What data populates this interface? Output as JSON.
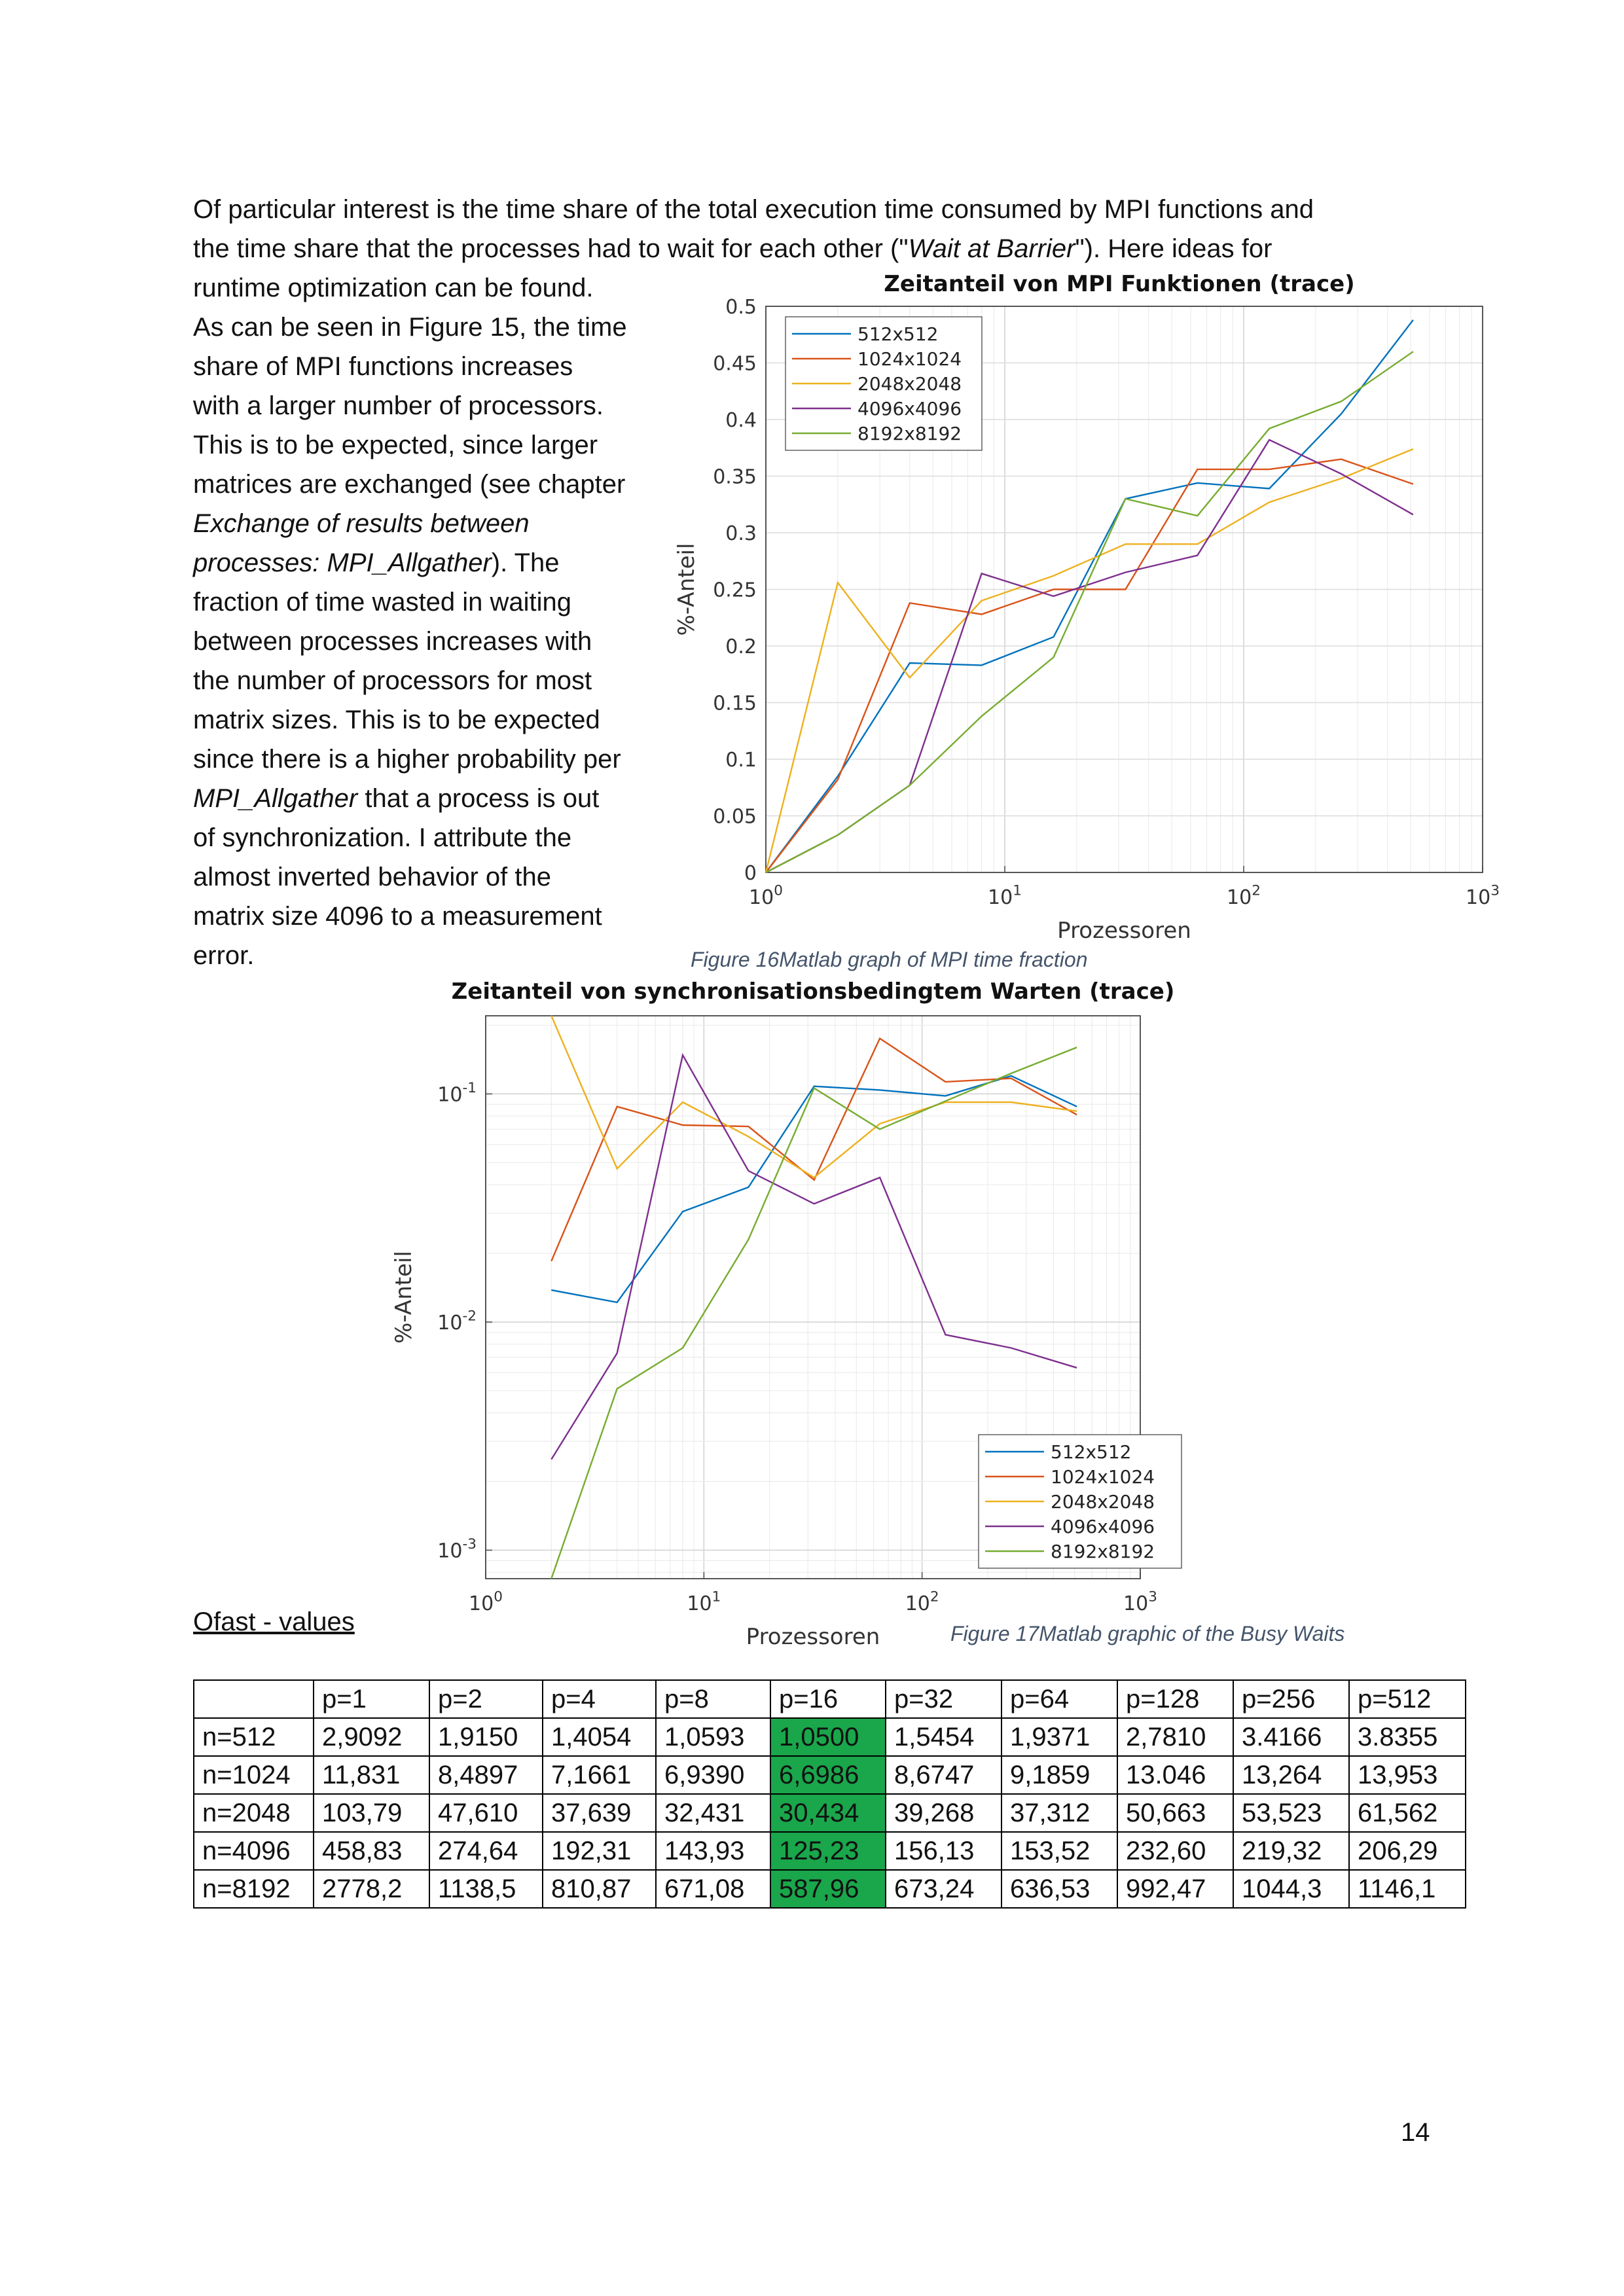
{
  "intro": {
    "line1": "Of particular interest is the time share of the total execution time consumed by MPI functions and",
    "line2_a": "the time share that the processes had to wait for each other (\"",
    "line2_em": "Wait at Barrier",
    "line2_b": "\"). Here ideas for",
    "line3": "runtime optimization can be found."
  },
  "side_text": {
    "lines": [
      "As can be seen in Figure 15, the time",
      "share of MPI functions increases",
      "with a larger number of processors.",
      "This is to be expected, since larger",
      "matrices are exchanged (see chapter"
    ],
    "em1": "Exchange of results between",
    "em2": "processes: MPI_Allgather",
    "after_em2": "). The",
    "lines2": [
      "fraction of time wasted in waiting",
      "between processes increases with",
      "the number of processors for most",
      "matrix sizes. This is to be expected",
      "since there is a higher probability per"
    ],
    "em3": "MPI_Allgather",
    "after_em3": " that a process is out",
    "lines3": [
      "of synchronization. I attribute the",
      "almost inverted behavior of the",
      "matrix size 4096 to a measurement",
      "error."
    ]
  },
  "chart_data": [
    {
      "type": "line",
      "title": "Zeitanteil von MPI Funktionen (trace)",
      "xlabel": "Prozessoren",
      "ylabel": "%-Anteil",
      "xscale": "log",
      "yscale": "linear",
      "xlim": [
        1,
        1000
      ],
      "ylim": [
        0,
        0.5
      ],
      "xtick_labels": [
        "10^0",
        "10^1",
        "10^2",
        "10^3"
      ],
      "ytick_labels": [
        "0",
        "0.05",
        "0.1",
        "0.15",
        "0.2",
        "0.25",
        "0.3",
        "0.35",
        "0.4",
        "0.45",
        "0.5"
      ],
      "grid": true,
      "legend_position": "top-left",
      "x": [
        1,
        2,
        4,
        8,
        16,
        32,
        64,
        128,
        256,
        512
      ],
      "series": [
        {
          "name": "512x512",
          "color": "#0072bd",
          "values": [
            0,
            0.085,
            0.185,
            0.183,
            0.208,
            0.33,
            0.344,
            0.339,
            0.405,
            0.488
          ]
        },
        {
          "name": "1024x1024",
          "color": "#d95319",
          "values": [
            0,
            0.082,
            0.238,
            0.228,
            0.25,
            0.25,
            0.356,
            0.356,
            0.365,
            0.343
          ]
        },
        {
          "name": "2048x2048",
          "color": "#edb120",
          "values": [
            0,
            0.256,
            0.172,
            0.24,
            0.262,
            0.29,
            0.29,
            0.327,
            0.348,
            0.374
          ]
        },
        {
          "name": "4096x4096",
          "color": "#7e2f8e",
          "values": [
            0,
            0.033,
            0.077,
            0.264,
            0.244,
            0.265,
            0.28,
            0.382,
            0.352,
            0.316
          ]
        },
        {
          "name": "8192x8192",
          "color": "#77ac30",
          "values": [
            0,
            0.033,
            0.077,
            0.138,
            0.19,
            0.33,
            0.315,
            0.392,
            0.416,
            0.46
          ]
        }
      ]
    },
    {
      "type": "line",
      "title": "Zeitanteil von synchronisationsbedingtem Warten (trace)",
      "xlabel": "Prozessoren",
      "ylabel": "%-Anteil",
      "xscale": "log",
      "yscale": "log",
      "xlim": [
        1,
        1000
      ],
      "ylim": [
        0.00075,
        0.22
      ],
      "xtick_labels": [
        "10^0",
        "10^1",
        "10^2",
        "10^3"
      ],
      "ytick_labels": [
        "10^-3",
        "10^-2",
        "10^-1"
      ],
      "grid": true,
      "legend_position": "bottom-right",
      "x": [
        2,
        4,
        8,
        16,
        32,
        64,
        128,
        256,
        512
      ],
      "series": [
        {
          "name": "512x512",
          "color": "#0072bd",
          "values": [
            0.0138,
            0.0122,
            0.0305,
            0.039,
            0.108,
            0.104,
            0.098,
            0.12,
            0.088
          ]
        },
        {
          "name": "1024x1024",
          "color": "#d95319",
          "values": [
            0.0185,
            0.088,
            0.073,
            0.072,
            0.042,
            0.175,
            0.113,
            0.117,
            0.081
          ]
        },
        {
          "name": "2048x2048",
          "color": "#edb120",
          "values": [
            0.22,
            0.047,
            0.092,
            0.065,
            0.043,
            0.074,
            0.092,
            0.092,
            0.084
          ]
        },
        {
          "name": "4096x4096",
          "color": "#7e2f8e",
          "values": [
            0.0025,
            0.0073,
            0.148,
            0.046,
            0.033,
            0.043,
            0.0088,
            0.0077,
            0.0063
          ]
        },
        {
          "name": "8192x8192",
          "color": "#77ac30",
          "values": [
            0.00072,
            0.0051,
            0.0077,
            0.023,
            0.106,
            0.07,
            0.093,
            0.123,
            0.16
          ]
        }
      ]
    }
  ],
  "captions": {
    "fig16": "Figure 16Matlab graph of MPI time fraction",
    "fig17": "Figure 17Matlab graphic of the Busy Waits"
  },
  "table_heading": "Ofast - values",
  "table": {
    "header": [
      "",
      "p=1",
      "p=2",
      "p=4",
      "p=8",
      "p=16",
      "p=32",
      "p=64",
      "p=128",
      "p=256",
      "p=512"
    ],
    "rows": [
      [
        "n=512",
        "2,9092",
        "1,9150",
        "1,4054",
        "1,0593",
        "1,0500",
        "1,5454",
        "1,9371",
        "2,7810",
        "3.4166",
        "3.8355"
      ],
      [
        "n=1024",
        "11,831",
        "8,4897",
        "7,1661",
        "6,9390",
        "6,6986",
        "8,6747",
        "9,1859",
        "13.046",
        "13,264",
        "13,953"
      ],
      [
        "n=2048",
        "103,79",
        "47,610",
        "37,639",
        "32,431",
        "30,434",
        "39,268",
        "37,312",
        "50,663",
        "53,523",
        "61,562"
      ],
      [
        "n=4096",
        "458,83",
        "274,64",
        "192,31",
        "143,93",
        "125,23",
        "156,13",
        "153,52",
        "232,60",
        "219,32",
        "206,29"
      ],
      [
        "n=8192",
        "2778,2",
        "1138,5",
        "810,87",
        "671,08",
        "587,96",
        "673,24",
        "636,53",
        "992,47",
        "1044,3",
        "1146,1"
      ]
    ],
    "highlight_column": "p=16",
    "highlight_color": "#1aa64b"
  },
  "page_number": "14"
}
